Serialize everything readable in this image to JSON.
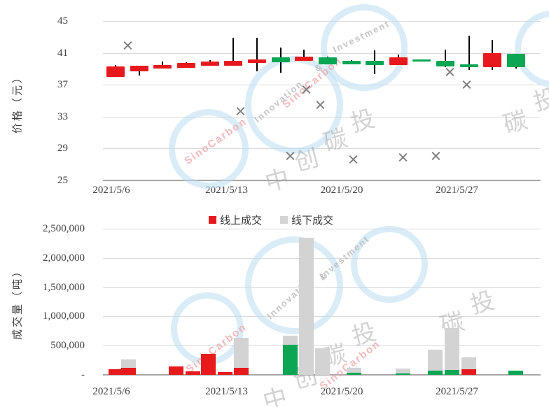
{
  "watermark": {
    "brand": "SinoCarbon",
    "word1": "Innovation",
    "amp": "&",
    "word2": "Investment",
    "cn_chars": [
      "中",
      "创",
      "碳",
      "投"
    ]
  },
  "colors": {
    "up": "#e8191d",
    "down": "#0aa654",
    "offline": "#d3d3d3",
    "grid": "#d9d9d9",
    "axis": "#a6a6a6",
    "marker": "#7f7f7f",
    "wick": "#000000",
    "text": "#404040"
  },
  "chart_data": [
    {
      "id": "price",
      "type": "candlestick+scatter",
      "title": "",
      "y_axis_title": "价格（元）",
      "ylim": [
        25,
        45
      ],
      "grid": true,
      "y_ticks": [
        "45",
        "41",
        "37",
        "33",
        "29",
        "25"
      ],
      "x_ticks": [
        "2021/5/6",
        "2021/5/13",
        "2021/5/20",
        "2021/5/27"
      ],
      "candles": [
        {
          "date": "2021/5/6",
          "open": 38.0,
          "high": 39.5,
          "low": 38.0,
          "close": 39.3,
          "dir": "up"
        },
        {
          "date": "2021/5/7",
          "open": 38.7,
          "high": 39.4,
          "low": 38.2,
          "close": 39.4,
          "dir": "up"
        },
        {
          "date": "2021/5/10",
          "open": 39.0,
          "high": 39.9,
          "low": 39.0,
          "close": 39.5,
          "dir": "up"
        },
        {
          "date": "2021/5/11",
          "open": 39.1,
          "high": 39.8,
          "low": 39.1,
          "close": 39.7,
          "dir": "up"
        },
        {
          "date": "2021/5/12",
          "open": 39.4,
          "high": 40.1,
          "low": 39.4,
          "close": 39.9,
          "dir": "up"
        },
        {
          "date": "2021/5/13",
          "open": 39.4,
          "high": 42.9,
          "low": 39.4,
          "close": 40.0,
          "dir": "up"
        },
        {
          "date": "2021/5/14",
          "open": 39.7,
          "high": 42.9,
          "low": 38.7,
          "close": 40.2,
          "dir": "up"
        },
        {
          "date": "2021/5/17",
          "open": 40.4,
          "high": 41.7,
          "low": 38.5,
          "close": 39.8,
          "dir": "down"
        },
        {
          "date": "2021/5/18",
          "open": 40.0,
          "high": 41.4,
          "low": 40.0,
          "close": 40.5,
          "dir": "up"
        },
        {
          "date": "2021/5/19",
          "open": 40.4,
          "high": 40.5,
          "low": 39.6,
          "close": 39.6,
          "dir": "down"
        },
        {
          "date": "2021/5/20",
          "open": 40.0,
          "high": 40.1,
          "low": 39.6,
          "close": 39.6,
          "dir": "down"
        },
        {
          "date": "2021/5/21",
          "open": 40.0,
          "high": 41.3,
          "low": 38.3,
          "close": 39.5,
          "dir": "down"
        },
        {
          "date": "2021/5/24",
          "open": 39.5,
          "high": 40.8,
          "low": 39.5,
          "close": 40.4,
          "dir": "up"
        },
        {
          "date": "2021/5/25",
          "open": 40.2,
          "high": 40.2,
          "low": 39.9,
          "close": 39.9,
          "dir": "down"
        },
        {
          "date": "2021/5/26",
          "open": 40.0,
          "high": 41.4,
          "low": 39.2,
          "close": 39.3,
          "dir": "down"
        },
        {
          "date": "2021/5/27",
          "open": 39.6,
          "high": 43.2,
          "low": 38.9,
          "close": 39.2,
          "dir": "down"
        },
        {
          "date": "2021/5/28",
          "open": 39.2,
          "high": 42.6,
          "low": 38.9,
          "close": 41.0,
          "dir": "up"
        },
        {
          "date": "2021/5/31",
          "open": 40.9,
          "high": 40.9,
          "low": 39.0,
          "close": 39.2,
          "dir": "down"
        }
      ],
      "scatter": [
        {
          "t": 0.53,
          "price": 41.9
        },
        {
          "t": 5.3,
          "price": 33.7
        },
        {
          "t": 7.4,
          "price": 28.1
        },
        {
          "t": 8.1,
          "price": 36.4
        },
        {
          "t": 8.7,
          "price": 34.5
        },
        {
          "t": 10.1,
          "price": 27.6
        },
        {
          "t": 12.2,
          "price": 27.9
        },
        {
          "t": 13.6,
          "price": 28.1
        },
        {
          "t": 14.2,
          "price": 38.6
        },
        {
          "t": 14.9,
          "price": 37.0
        }
      ]
    },
    {
      "id": "volume",
      "type": "stacked-bar",
      "title": "",
      "y_axis_title": "成交量（吨）",
      "ylim": [
        0,
        2500000
      ],
      "grid": true,
      "y_ticks": [
        "2,500,000",
        "2,000,000",
        "1,500,000",
        "1,000,000",
        "500,000",
        "-"
      ],
      "x_ticks": [
        "2021/5/6",
        "2021/5/13",
        "2021/5/20",
        "2021/5/27"
      ],
      "legend": [
        {
          "label": "线上成交",
          "color": "#e8191d"
        },
        {
          "label": "线下成交",
          "color": "#d3d3d3"
        }
      ],
      "bars": [
        {
          "t": 0.0,
          "online": 100000,
          "online_color": "#e8191d",
          "offline": 0
        },
        {
          "t": 0.56,
          "online": 120000,
          "online_color": "#e8191d",
          "offline": 140000
        },
        {
          "t": 2.56,
          "online": 140000,
          "online_color": "#e8191d",
          "offline": 0
        },
        {
          "t": 3.27,
          "online": 60000,
          "online_color": "#e8191d",
          "offline": 0
        },
        {
          "t": 3.95,
          "online": 360000,
          "online_color": "#e8191d",
          "offline": 0
        },
        {
          "t": 4.64,
          "online": 50000,
          "online_color": "#e8191d",
          "offline": 0
        },
        {
          "t": 5.32,
          "online": 120000,
          "online_color": "#e8191d",
          "offline": 510000
        },
        {
          "t": 7.4,
          "online": 520000,
          "online_color": "#0aa654",
          "offline": 150000
        },
        {
          "t": 8.11,
          "online": 0,
          "online_color": "#d3d3d3",
          "offline": 2350000
        },
        {
          "t": 8.77,
          "online": 0,
          "online_color": "#d3d3d3",
          "offline": 450000
        },
        {
          "t": 10.13,
          "online": 40000,
          "online_color": "#0aa654",
          "offline": 80000
        },
        {
          "t": 12.21,
          "online": 20000,
          "online_color": "#0aa654",
          "offline": 90000
        },
        {
          "t": 13.58,
          "online": 70000,
          "online_color": "#0aa654",
          "offline": 360000
        },
        {
          "t": 14.29,
          "online": 80000,
          "online_color": "#0aa654",
          "offline": 720000
        },
        {
          "t": 14.98,
          "online": 100000,
          "online_color": "#e8191d",
          "offline": 200000
        },
        {
          "t": 16.97,
          "online": 70000,
          "online_color": "#0aa654",
          "offline": 0
        }
      ]
    }
  ]
}
